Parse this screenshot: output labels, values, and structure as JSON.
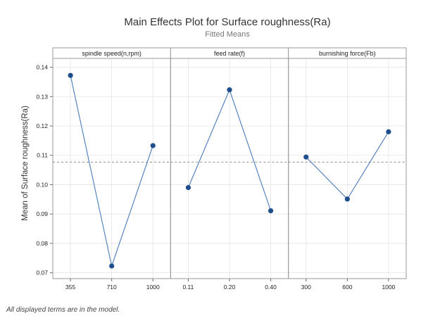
{
  "chart_data": {
    "type": "line",
    "title": "Main Effects Plot for Surface roughness(Ra)",
    "subtitle": "Fitted Means",
    "ylabel": "Mean of Surface roughness(Ra)",
    "ylim": [
      0.068,
      0.143
    ],
    "yticks": [
      0.07,
      0.08,
      0.09,
      0.1,
      0.11,
      0.12,
      0.13,
      0.14
    ],
    "ytick_labels": [
      "0.07",
      "0.08",
      "0.09",
      "0.10",
      "0.11",
      "0.12",
      "0.13",
      "0.14"
    ],
    "reference_line": 0.1077,
    "grid": true,
    "point_color": "#1f4e8c",
    "line_color": "#4a7ab8",
    "panels": [
      {
        "factor": "spindle speed(n,rpm)",
        "categories": [
          "355",
          "710",
          "1000"
        ],
        "values": [
          0.1372,
          0.0723,
          0.1133
        ]
      },
      {
        "factor": "feed rate(f)",
        "categories": [
          "0.11",
          "0.20",
          "0.40"
        ],
        "values": [
          0.099,
          0.1323,
          0.0911
        ]
      },
      {
        "factor": "burnishing force(Fb)",
        "categories": [
          "300",
          "600",
          "1000"
        ],
        "values": [
          0.1094,
          0.0951,
          0.118
        ]
      }
    ],
    "footnote": "All displayed terms are in the model."
  }
}
